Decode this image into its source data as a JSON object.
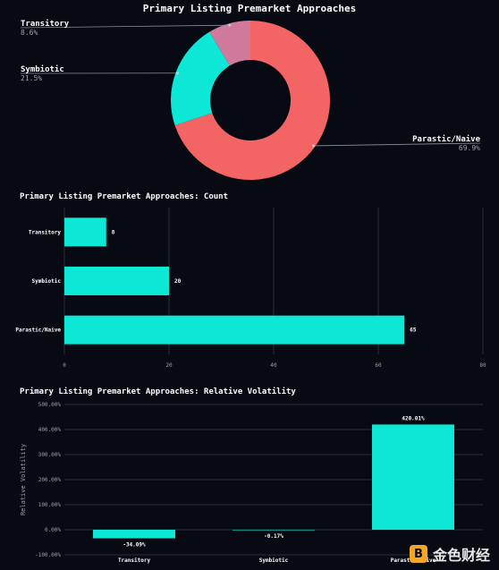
{
  "chart_data": [
    {
      "type": "pie",
      "title": "Primary Listing Premarket Approaches",
      "slices": [
        {
          "label": "Parastic/Naive",
          "percent": 69.9,
          "percent_label": "69.9%",
          "color": "#f36464"
        },
        {
          "label": "Symbiotic",
          "percent": 21.5,
          "percent_label": "21.5%",
          "color": "#0de8d6"
        },
        {
          "label": "Transitory",
          "percent": 8.6,
          "percent_label": "8.6%",
          "color": "#d17a9c"
        }
      ]
    },
    {
      "type": "bar",
      "orientation": "horizontal",
      "title": "Primary Listing Premarket Approaches: Count",
      "categories": [
        "Transitory",
        "Symbiotic",
        "Parastic/Naive"
      ],
      "values": [
        8,
        20,
        65
      ],
      "value_labels": [
        "8",
        "20",
        "65"
      ],
      "xlim": [
        0,
        80
      ],
      "xticks": [
        "0",
        "20",
        "40",
        "60",
        "80"
      ],
      "color": "#0de8d6",
      "grid": true
    },
    {
      "type": "bar",
      "title": "Primary Listing Premarket Approaches: Relative Volatility",
      "ylabel": "Relative Volatility",
      "categories": [
        "Transitory",
        "Symbiotic",
        "Parastic/Naive"
      ],
      "values": [
        -34.09,
        -0.17,
        420.01
      ],
      "value_labels": [
        "-34.09%",
        "-0.17%",
        "420.01%"
      ],
      "ylim": [
        -100,
        500
      ],
      "yticks": [
        "500.00%",
        "400.00%",
        "300.00%",
        "200.00%",
        "100.00%",
        "0.00%",
        "-100.00%"
      ],
      "color": "#0de8d6",
      "grid": true
    }
  ],
  "watermark": {
    "logo_glyph": "B",
    "text": "金色财经"
  }
}
